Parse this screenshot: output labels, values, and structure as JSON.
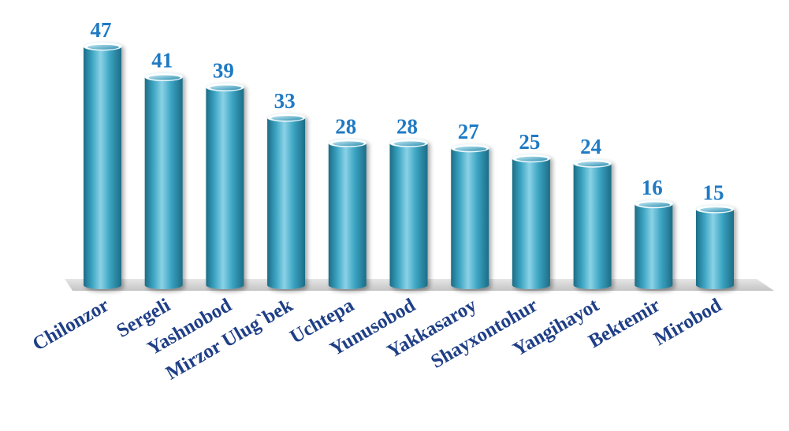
{
  "chart_data": {
    "type": "bar",
    "categories": [
      "Chilonzor",
      "Sergeli",
      "Yashnobod",
      "Mirzor Ulug`bek",
      "Uchtepa",
      "Yunusobod",
      "Yakkasaroy",
      "Shayxontohur",
      "Yangihayot",
      "Bektemir",
      "Mirobod"
    ],
    "values": [
      47,
      41,
      39,
      33,
      28,
      28,
      27,
      25,
      24,
      16,
      15
    ],
    "value_labels": [
      "47",
      "41",
      "39",
      "33",
      "28",
      "28",
      "27",
      "25",
      "24",
      "16",
      "15"
    ],
    "title": "",
    "xlabel": "",
    "ylabel": "",
    "ylim": [
      0,
      50
    ],
    "grid": false,
    "legend": "none",
    "colors": {
      "bar": "#3aa3c1",
      "bar_light": "#8ad2e6",
      "bar_dark": "#1d6c86",
      "bar_top": "#d9f1f8",
      "value_label": "#1f7ac4",
      "category_label": "#1f3f86",
      "floor": "#d9d9d9"
    }
  }
}
